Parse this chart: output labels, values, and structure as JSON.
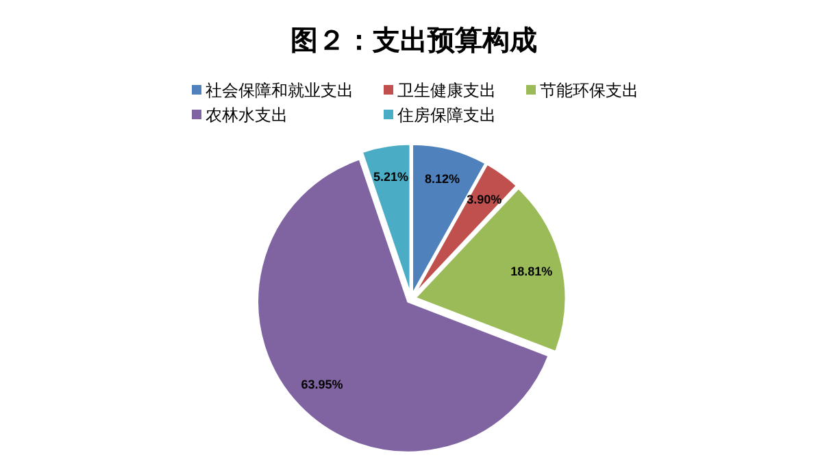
{
  "chart_data": {
    "type": "pie",
    "title": "图２：支出预算构成",
    "categories": [
      "社会保障和就业支出",
      "卫生健康支出",
      "节能环保支出",
      "农林水支出",
      "住房保障支出"
    ],
    "values": [
      8.12,
      3.9,
      18.81,
      63.95,
      5.21
    ],
    "colors": [
      "#4f81bd",
      "#c0504d",
      "#9bbb59",
      "#8064a2",
      "#4bacc6"
    ],
    "value_labels": [
      "8.12%",
      "3.90%",
      "18.81%",
      "63.95%",
      "5.21%"
    ],
    "legend": "top"
  }
}
